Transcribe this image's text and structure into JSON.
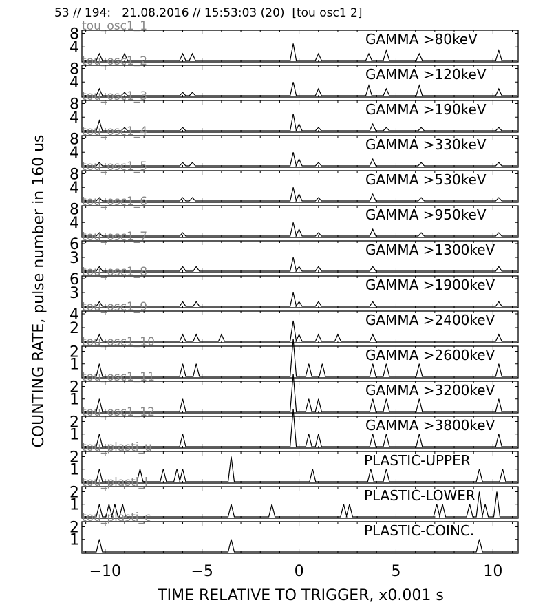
{
  "header": "53 // 194:   21.08.2016 // 15:53:03 (20)  [tou osc1 2]",
  "ylabel": "COUNTING RATE,    pulse number in 160 us",
  "xlabel": "TIME RELATIVE TO TRIGGER,   x0.001 s",
  "xlim": [
    -11.2,
    11.3
  ],
  "xticks": [
    -10,
    -5,
    0,
    5,
    10
  ],
  "xtick_labels": [
    "−10",
    "−5",
    "0",
    "5",
    "10"
  ],
  "colors": {
    "line": "#000000",
    "channel_label": "#888888",
    "axes": "#000000"
  },
  "chart_data": [
    {
      "type": "line",
      "channel": "tou_osc1_1",
      "title": "GAMMA >80keV",
      "ylim": [
        0,
        8.5
      ],
      "yticks": [
        4,
        8
      ],
      "x": [
        -10.3,
        -9.0,
        -6.0,
        -5.5,
        -0.3,
        1.0,
        3.6,
        4.5,
        6.2,
        10.3
      ],
      "y": [
        2,
        2,
        2,
        2,
        5,
        2,
        2,
        3,
        2,
        3
      ]
    },
    {
      "type": "line",
      "channel": "tou_osc1_2",
      "title": "GAMMA >120keV",
      "ylim": [
        0,
        8.5
      ],
      "yticks": [
        4,
        8
      ],
      "x": [
        -10.3,
        -9.0,
        -6.0,
        -5.5,
        -0.3,
        1.0,
        3.6,
        4.5,
        6.2,
        10.3
      ],
      "y": [
        2,
        1,
        1,
        1,
        4,
        2,
        3,
        2,
        3,
        2
      ]
    },
    {
      "type": "line",
      "channel": "tou_osc1_3",
      "title": "GAMMA >190keV",
      "ylim": [
        0,
        8.5
      ],
      "yticks": [
        4,
        8
      ],
      "x": [
        -10.3,
        -9.0,
        -6.0,
        -0.3,
        0.0,
        1.0,
        3.8,
        4.5,
        6.3,
        10.3
      ],
      "y": [
        3,
        1,
        1,
        5,
        2,
        1,
        2,
        1,
        1,
        1
      ]
    },
    {
      "type": "line",
      "channel": "tou_osc1_4",
      "title": "GAMMA >330keV",
      "ylim": [
        0,
        8.5
      ],
      "yticks": [
        4,
        8
      ],
      "x": [
        -10.3,
        -6.0,
        -5.5,
        -0.3,
        0.0,
        1.0,
        3.8,
        6.3,
        10.3
      ],
      "y": [
        1,
        1,
        1,
        4,
        2,
        1,
        2,
        1,
        1
      ]
    },
    {
      "type": "line",
      "channel": "tou_osc1_5",
      "title": "GAMMA >530keV",
      "ylim": [
        0,
        8.5
      ],
      "yticks": [
        4,
        8
      ],
      "x": [
        -10.3,
        -6.0,
        -5.5,
        -0.3,
        0.0,
        1.0,
        3.8,
        6.3,
        10.3
      ],
      "y": [
        1,
        1,
        1,
        4,
        2,
        1,
        2,
        1,
        1
      ]
    },
    {
      "type": "line",
      "channel": "tou_osc1_6",
      "title": "GAMMA >950keV",
      "ylim": [
        0,
        8.5
      ],
      "yticks": [
        4,
        8
      ],
      "x": [
        -10.3,
        -6.0,
        -0.3,
        0.0,
        1.0,
        3.8,
        6.3,
        10.3
      ],
      "y": [
        1,
        1,
        4,
        2,
        1,
        2,
        1,
        1
      ]
    },
    {
      "type": "line",
      "channel": "tou_osc1_7",
      "title": "GAMMA >1300keV",
      "ylim": [
        0,
        6.3
      ],
      "yticks": [
        3,
        6
      ],
      "x": [
        -10.3,
        -6.0,
        -5.3,
        -0.3,
        0.0,
        1.0,
        3.8,
        10.3
      ],
      "y": [
        1,
        1,
        1,
        3,
        1,
        1,
        1,
        1
      ]
    },
    {
      "type": "line",
      "channel": "tou_osc1_8",
      "title": "GAMMA >1900keV",
      "ylim": [
        0,
        6.3
      ],
      "yticks": [
        3,
        6
      ],
      "x": [
        -10.3,
        -6.0,
        -5.3,
        -0.3,
        0.0,
        1.0,
        3.8,
        10.3
      ],
      "y": [
        1,
        1,
        1,
        3,
        1,
        1,
        1,
        1
      ]
    },
    {
      "type": "line",
      "channel": "tou_osc1_9",
      "title": "GAMMA >2400keV",
      "ylim": [
        0,
        4.2
      ],
      "yticks": [
        2,
        4
      ],
      "x": [
        -10.3,
        -6.0,
        -5.3,
        -4.0,
        -0.3,
        0.0,
        1.0,
        2.0,
        3.8,
        10.3
      ],
      "y": [
        1,
        1,
        1,
        1,
        3,
        1,
        1,
        1,
        1,
        1
      ]
    },
    {
      "type": "line",
      "channel": "tou_osc1_10",
      "title": "GAMMA >2600keV",
      "ylim": [
        0,
        2.3
      ],
      "yticks": [
        1,
        2
      ],
      "x": [
        -10.3,
        -6.0,
        -5.3,
        -0.3,
        0.5,
        1.2,
        3.8,
        4.5,
        6.2,
        10.3
      ],
      "y": [
        1,
        1,
        1,
        3,
        1,
        1,
        1,
        1,
        1,
        1
      ]
    },
    {
      "type": "line",
      "channel": "tou_osc1_11",
      "title": "GAMMA >3200keV",
      "ylim": [
        0,
        2.3
      ],
      "yticks": [
        1,
        2
      ],
      "x": [
        -10.3,
        -6.0,
        -0.3,
        0.5,
        1.0,
        3.8,
        4.5,
        6.2,
        10.3
      ],
      "y": [
        1,
        1,
        3,
        1,
        1,
        1,
        1,
        1,
        1
      ]
    },
    {
      "type": "line",
      "channel": "tou_osc1_12",
      "title": "GAMMA >3800keV",
      "ylim": [
        0,
        2.3
      ],
      "yticks": [
        1,
        2
      ],
      "x": [
        -10.3,
        -6.0,
        -0.3,
        0.5,
        1.0,
        3.8,
        4.5,
        6.2,
        10.3
      ],
      "y": [
        1,
        1,
        3,
        1,
        1,
        1,
        1,
        1,
        1
      ]
    },
    {
      "type": "line",
      "channel": "tou_plasti_u",
      "title": "PLASTIC-UPPER",
      "ylim": [
        0,
        2.3
      ],
      "yticks": [
        1,
        2
      ],
      "x": [
        -10.3,
        -8.2,
        -7.0,
        -6.3,
        -6.0,
        -3.5,
        0.7,
        3.7,
        4.5,
        9.3,
        10.5
      ],
      "y": [
        1,
        1,
        1,
        1,
        1,
        2,
        1,
        1,
        1,
        1,
        1
      ]
    },
    {
      "type": "line",
      "channel": "tou_plastl_l",
      "title": "PLASTIC-LOWER",
      "ylim": [
        0,
        2.3
      ],
      "yticks": [
        1,
        2
      ],
      "x": [
        -10.3,
        -9.8,
        -9.5,
        -9.1,
        -3.5,
        -1.4,
        2.3,
        2.6,
        7.1,
        7.4,
        8.8,
        9.3,
        9.6,
        10.2
      ],
      "y": [
        1,
        1,
        1,
        1,
        1,
        1,
        1,
        1,
        1,
        1,
        1,
        2,
        1,
        2
      ]
    },
    {
      "type": "line",
      "channel": "tou_plasti_c",
      "title": "PLASTIC-COINC.",
      "ylim": [
        0,
        2.3
      ],
      "yticks": [
        1,
        2
      ],
      "x": [
        -10.3,
        -3.5,
        9.3
      ],
      "y": [
        1,
        1,
        1
      ]
    }
  ]
}
